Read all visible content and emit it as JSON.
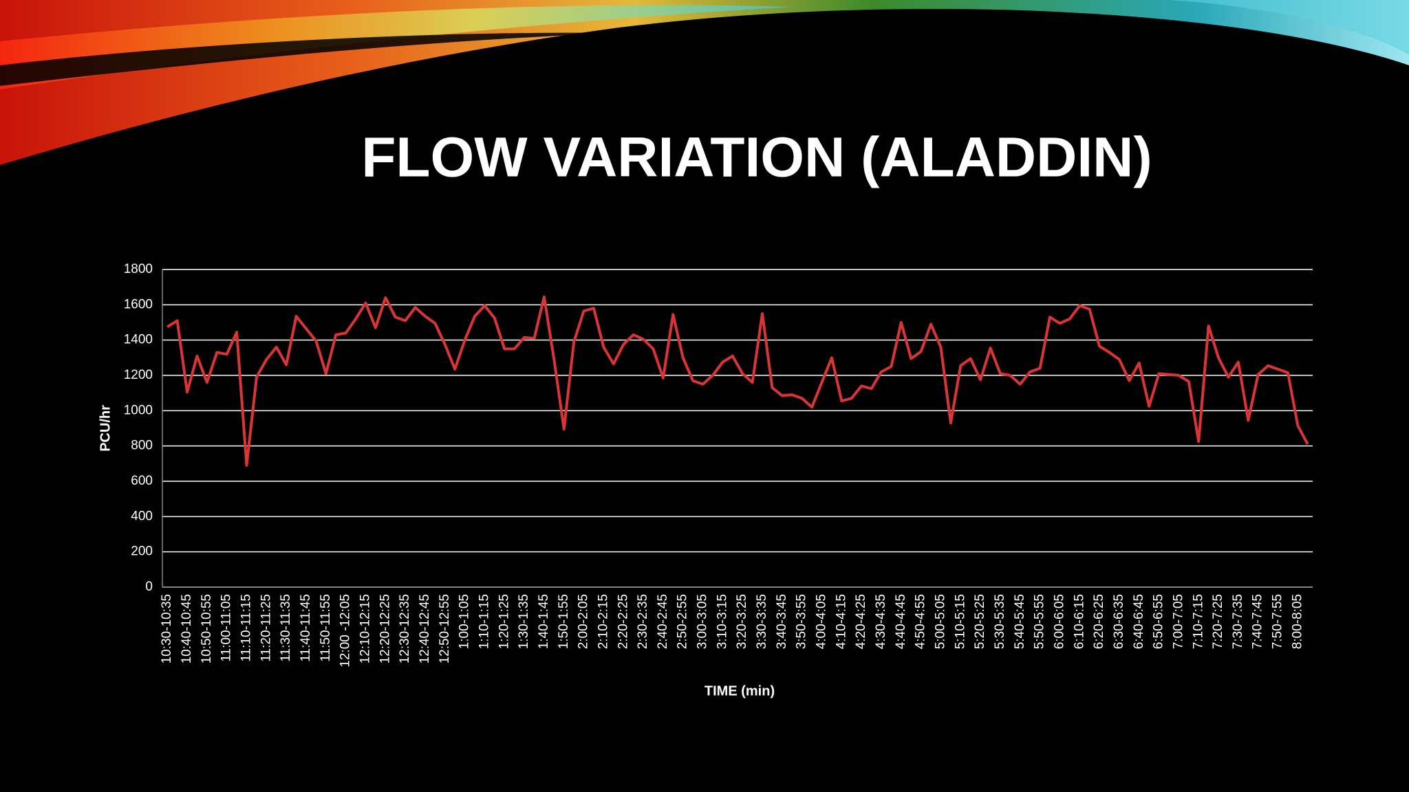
{
  "chart_data": {
    "type": "line",
    "title": "FLOW VARIATION (ALADDIN)",
    "x_label": "TIME (min)",
    "y_label": "PCU/hr",
    "color": "#d93535",
    "grid": true,
    "ylim": [
      0,
      1800
    ],
    "yticks": [
      0,
      200,
      400,
      600,
      800,
      1000,
      1200,
      1400,
      1600,
      1800
    ],
    "categories": [
      "10:30-10:35",
      null,
      "10:40-10:45",
      null,
      "10:50-10:55",
      null,
      "11:00-11:05",
      null,
      "11:10-11:15",
      null,
      "11:20-11:25",
      null,
      "11:30-11:35",
      null,
      "11:40-11:45",
      null,
      "11:50-11:55",
      null,
      "12:00 -12:05",
      null,
      "12:10-12:15",
      null,
      "12:20-12:25",
      null,
      "12:30-12:35",
      null,
      "12:40-12:45",
      null,
      "12:50-12:55",
      null,
      "1:00-1:05",
      null,
      "1:10-1:15",
      null,
      "1:20-1:25",
      null,
      "1:30-1:35",
      null,
      "1:40-1:45",
      null,
      "1:50-1:55",
      null,
      "2:00-2:05",
      null,
      "2:10-2:15",
      null,
      "2:20-2:25",
      null,
      "2:30-2:35",
      null,
      "2:40-2:45",
      null,
      "2:50-2:55",
      null,
      "3:00-3:05",
      null,
      "3:10-3:15",
      null,
      "3:20-3:25",
      null,
      "3:30-3:35",
      null,
      "3:40-3:45",
      null,
      "3:50-3:55",
      null,
      "4:00-4:05",
      null,
      "4:10-4:15",
      null,
      "4:20-4:25",
      null,
      "4:30-4:35",
      null,
      "4:40-4:45",
      null,
      "4:50-4:55",
      null,
      "5:00-5:05",
      null,
      "5:10-5:15",
      null,
      "5:20-5:25",
      null,
      "5:30-5:35",
      null,
      "5:40-5:45",
      null,
      "5:50-5:55",
      null,
      "6:00-6:05",
      null,
      "6:10-6:15",
      null,
      "6:20-6:25",
      null,
      "6:30-6:35",
      null,
      "6:40-6:45",
      null,
      "6:50-6:55",
      null,
      "7:00-7:05",
      null,
      "7:10-7:15",
      null,
      "7:20-7:25",
      null,
      "7:30-7:35",
      null,
      "7:40-7:45",
      null,
      "7:50-7:55",
      null,
      "8:00-8:05",
      null
    ],
    "values": [
      1475,
      1510,
      1105,
      1310,
      1160,
      1330,
      1320,
      1445,
      690,
      1190,
      1290,
      1360,
      1260,
      1535,
      1465,
      1395,
      1210,
      1430,
      1440,
      1520,
      1610,
      1470,
      1640,
      1530,
      1510,
      1585,
      1535,
      1495,
      1375,
      1235,
      1400,
      1535,
      1595,
      1525,
      1350,
      1350,
      1415,
      1410,
      1645,
      1290,
      895,
      1390,
      1565,
      1580,
      1360,
      1265,
      1375,
      1430,
      1405,
      1350,
      1185,
      1545,
      1300,
      1170,
      1150,
      1200,
      1275,
      1310,
      1210,
      1160,
      1550,
      1130,
      1085,
      1090,
      1070,
      1020,
      1160,
      1300,
      1055,
      1070,
      1140,
      1125,
      1220,
      1250,
      1500,
      1295,
      1335,
      1490,
      1360,
      930,
      1255,
      1295,
      1175,
      1355,
      1210,
      1200,
      1150,
      1220,
      1240,
      1530,
      1495,
      1520,
      1595,
      1575,
      1365,
      1330,
      1290,
      1170,
      1270,
      1025,
      1210,
      1205,
      1200,
      1165,
      825,
      1480,
      1300,
      1190,
      1275,
      945,
      1205,
      1255,
      1235,
      1215,
      915,
      810
    ]
  }
}
